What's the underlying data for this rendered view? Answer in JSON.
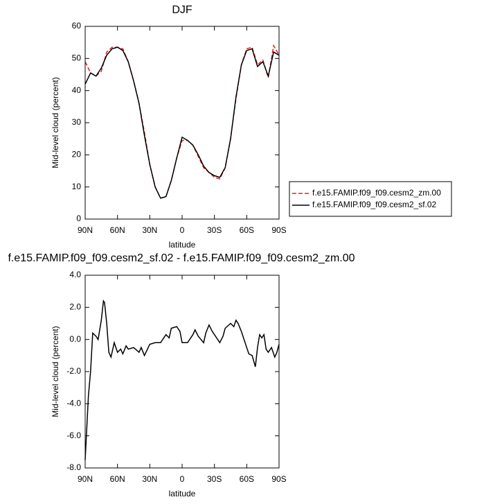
{
  "chart_data": [
    {
      "type": "line",
      "title": "DJF",
      "xlabel": "latitude",
      "ylabel": "Mid-level cloud (percent)",
      "x": [
        90,
        85,
        80,
        75,
        70,
        65,
        60,
        55,
        50,
        45,
        40,
        35,
        30,
        25,
        20,
        15,
        10,
        5,
        0,
        -5,
        -10,
        -15,
        -20,
        -25,
        -30,
        -35,
        -40,
        -45,
        -50,
        -55,
        -60,
        -65,
        -70,
        -75,
        -80,
        -85,
        -90
      ],
      "series": [
        {
          "name": "f.e15.FAMIP.f09_f09.cesm2_zm.00",
          "color": "#e02020",
          "dashed": true,
          "values": [
            49,
            45.5,
            44.5,
            46,
            52,
            53.5,
            53.5,
            53,
            49,
            43,
            36,
            27,
            17,
            10,
            6.5,
            7,
            12,
            19,
            24.5,
            24.5,
            23,
            19.5,
            16,
            14.5,
            13,
            12.5,
            16,
            25,
            37.5,
            48,
            53,
            53.5,
            48,
            49.5,
            44,
            54,
            51
          ]
        },
        {
          "name": "f.e15.FAMIP.f09_f09.cesm2_sf.02",
          "color": "#000000",
          "dashed": false,
          "values": [
            42,
            45.5,
            44.5,
            47,
            51,
            53,
            53.5,
            52.5,
            49,
            43,
            36,
            26,
            17,
            10,
            6.5,
            7,
            12,
            19,
            25.5,
            24.5,
            23,
            20,
            16.5,
            14.5,
            13.5,
            13,
            16,
            25,
            38,
            48,
            52.5,
            53,
            47.5,
            49,
            44.5,
            52,
            51
          ]
        }
      ],
      "xlim": [
        90,
        -90
      ],
      "xticks": [
        {
          "value": 90,
          "label": "90N"
        },
        {
          "value": 60,
          "label": "60N"
        },
        {
          "value": 30,
          "label": "30N"
        },
        0,
        {
          "value": -30,
          "label": "30S"
        },
        {
          "value": -60,
          "label": "60S"
        },
        {
          "value": -90,
          "label": "90S"
        }
      ],
      "ylim": [
        0,
        60
      ],
      "yticks": [
        0,
        10,
        20,
        30,
        40,
        50,
        60
      ],
      "legend": "right"
    },
    {
      "type": "line",
      "title": "f.e15.FAMIP.f09_f09.cesm2_sf.02 - f.e15.FAMIP.f09_f09.cesm2_zm.00",
      "xlabel": "latitude",
      "ylabel": "Mid-level cloud (percent)",
      "x": [
        90,
        87,
        85,
        83,
        80,
        78,
        75,
        73,
        72,
        70,
        68,
        66,
        63,
        60,
        57,
        55,
        52,
        50,
        45,
        40,
        38,
        35,
        30,
        25,
        20,
        15,
        12,
        10,
        5,
        2,
        0,
        -5,
        -10,
        -12,
        -15,
        -20,
        -22,
        -25,
        -28,
        -30,
        -35,
        -38,
        -40,
        -45,
        -48,
        -50,
        -52,
        -55,
        -58,
        -60,
        -62,
        -65,
        -68,
        -70,
        -72,
        -74,
        -76,
        -78,
        -80,
        -83,
        -86,
        -88,
        -90
      ],
      "values": [
        -7.5,
        -3.5,
        -2,
        0.4,
        0.2,
        0,
        1.2,
        2.4,
        2.3,
        1,
        -0.8,
        -1.1,
        -0.2,
        -0.8,
        -0.6,
        -0.9,
        -0.4,
        -0.6,
        -0.5,
        -0.8,
        -0.5,
        -1.0,
        -0.3,
        -0.2,
        -0.2,
        0.3,
        0.1,
        0.7,
        0.8,
        0.5,
        -0.2,
        -0.2,
        0.3,
        0.6,
        0.2,
        -0.2,
        0.4,
        0.9,
        0.5,
        0.3,
        -0.2,
        0.2,
        0.7,
        1.0,
        0.8,
        1.2,
        1.0,
        0.5,
        -0.1,
        -0.5,
        -0.9,
        -1.0,
        -1.7,
        -0.5,
        0.3,
        0.1,
        0.3,
        -0.6,
        -0.8,
        -0.5,
        -1.1,
        -0.8,
        -0.3
      ],
      "color": "#000000",
      "xlim": [
        90,
        -90
      ],
      "xticks": [
        {
          "value": 90,
          "label": "90N"
        },
        {
          "value": 60,
          "label": "60N"
        },
        {
          "value": 30,
          "label": "30N"
        },
        0,
        {
          "value": -30,
          "label": "30S"
        },
        {
          "value": -60,
          "label": "60S"
        },
        {
          "value": -90,
          "label": "90S"
        }
      ],
      "ylim": [
        -8,
        4
      ],
      "yticks": [
        {
          "value": -8,
          "label": "-8.0"
        },
        {
          "value": -6,
          "label": "-6.0"
        },
        {
          "value": -4,
          "label": "-4.0"
        },
        {
          "value": -2,
          "label": "-2.0"
        },
        {
          "value": 0,
          "label": "0.0"
        },
        {
          "value": 2,
          "label": "2.0"
        },
        {
          "value": 4,
          "label": "4.0"
        }
      ]
    }
  ]
}
